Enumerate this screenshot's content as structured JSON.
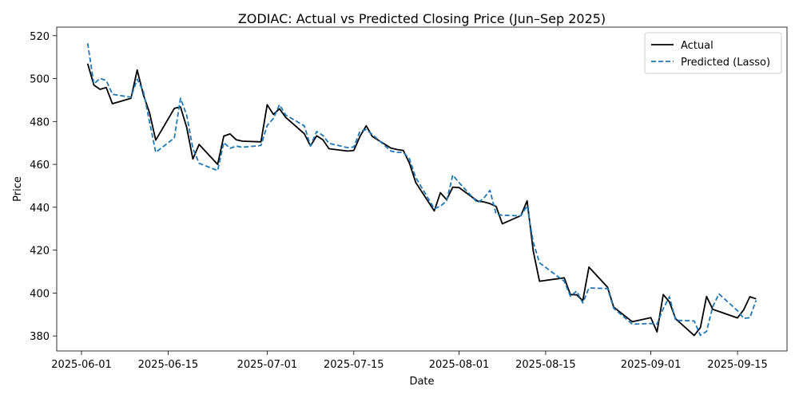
{
  "chart_data": {
    "type": "line",
    "title": "ZODIAC: Actual vs Predicted Closing Price (Jun–Sep 2025)",
    "xlabel": "Date",
    "ylabel": "Price",
    "xlim": [
      "2025-05-28",
      "2025-09-23"
    ],
    "ylim": [
      373,
      524
    ],
    "x_ticks": [
      "2025-06-01",
      "2025-06-15",
      "2025-07-01",
      "2025-07-15",
      "2025-08-01",
      "2025-08-15",
      "2025-09-01",
      "2025-09-15"
    ],
    "y_ticks": [
      380,
      400,
      420,
      440,
      460,
      480,
      500,
      520
    ],
    "grid": false,
    "legend_position": "top-right",
    "x": [
      "2025-06-02",
      "2025-06-03",
      "2025-06-04",
      "2025-06-05",
      "2025-06-06",
      "2025-06-09",
      "2025-06-10",
      "2025-06-11",
      "2025-06-12",
      "2025-06-13",
      "2025-06-16",
      "2025-06-17",
      "2025-06-18",
      "2025-06-19",
      "2025-06-20",
      "2025-06-23",
      "2025-06-24",
      "2025-06-25",
      "2025-06-26",
      "2025-06-27",
      "2025-06-30",
      "2025-07-01",
      "2025-07-02",
      "2025-07-03",
      "2025-07-04",
      "2025-07-07",
      "2025-07-08",
      "2025-07-09",
      "2025-07-10",
      "2025-07-11",
      "2025-07-14",
      "2025-07-15",
      "2025-07-16",
      "2025-07-17",
      "2025-07-18",
      "2025-07-21",
      "2025-07-22",
      "2025-07-23",
      "2025-07-24",
      "2025-07-25",
      "2025-07-28",
      "2025-07-29",
      "2025-07-30",
      "2025-07-31",
      "2025-08-01",
      "2025-08-04",
      "2025-08-05",
      "2025-08-06",
      "2025-08-07",
      "2025-08-08",
      "2025-08-11",
      "2025-08-12",
      "2025-08-13",
      "2025-08-14",
      "2025-08-18",
      "2025-08-19",
      "2025-08-20",
      "2025-08-21",
      "2025-08-22",
      "2025-08-25",
      "2025-08-26",
      "2025-08-29",
      "2025-09-01",
      "2025-09-02",
      "2025-09-03",
      "2025-09-04",
      "2025-09-05",
      "2025-09-08",
      "2025-09-09",
      "2025-09-10",
      "2025-09-11",
      "2025-09-12",
      "2025-09-15",
      "2025-09-16",
      "2025-09-17",
      "2025-09-18"
    ],
    "series": [
      {
        "name": "Actual",
        "color": "#000000",
        "dash": "solid",
        "values": [
          507,
          497,
          495,
          495.8,
          488.3,
          490.8,
          504,
          492.5,
          484,
          471.3,
          486.1,
          486.8,
          477.2,
          462.5,
          469.3,
          460,
          473.2,
          474.2,
          471.5,
          470.8,
          470.5,
          487.8,
          483.3,
          485.9,
          481.9,
          474.3,
          468.6,
          473.3,
          471.5,
          467.3,
          466.2,
          466.5,
          473,
          478,
          473,
          467.6,
          466.9,
          466.5,
          460.5,
          451.6,
          438.3,
          446.8,
          443.5,
          449.4,
          449.2,
          442.9,
          442.5,
          441.7,
          440.4,
          432.3,
          436.1,
          443,
          419.6,
          405.5,
          407.1,
          399.3,
          399.2,
          396.5,
          412.1,
          402.7,
          393.4,
          386.6,
          388.5,
          381.9,
          399.3,
          395.9,
          388,
          380.2,
          383.9,
          398.4,
          392.4,
          391.4,
          388.4,
          392.2,
          398.3,
          397.3
        ]
      },
      {
        "name": "Predicted (Lasso)",
        "color": "#1f77b4",
        "dash": "dashed",
        "values": [
          516.5,
          497.5,
          500.1,
          499.1,
          492.7,
          491.3,
          499.7,
          494.1,
          479.8,
          465.6,
          472.3,
          490.8,
          482.9,
          467.4,
          460.5,
          457.1,
          470.2,
          467.5,
          468.5,
          468,
          468.8,
          478.1,
          481.4,
          487.8,
          483,
          478,
          468.7,
          475.3,
          473.5,
          469.8,
          467.8,
          468.1,
          475.4,
          476.2,
          473.9,
          466.2,
          465.6,
          465.6,
          462.6,
          453.9,
          439.3,
          440.5,
          443,
          455,
          451.5,
          442.1,
          444.2,
          447.9,
          436.8,
          436.3,
          436,
          440.7,
          423.7,
          414.1,
          405.5,
          398.5,
          400.9,
          395.4,
          402.4,
          402.1,
          392.9,
          385.5,
          385.8,
          385.5,
          392.7,
          398.3,
          387.3,
          387,
          380.3,
          382.1,
          393.7,
          399.6,
          391.8,
          388.2,
          388.5,
          396.6
        ]
      }
    ]
  }
}
